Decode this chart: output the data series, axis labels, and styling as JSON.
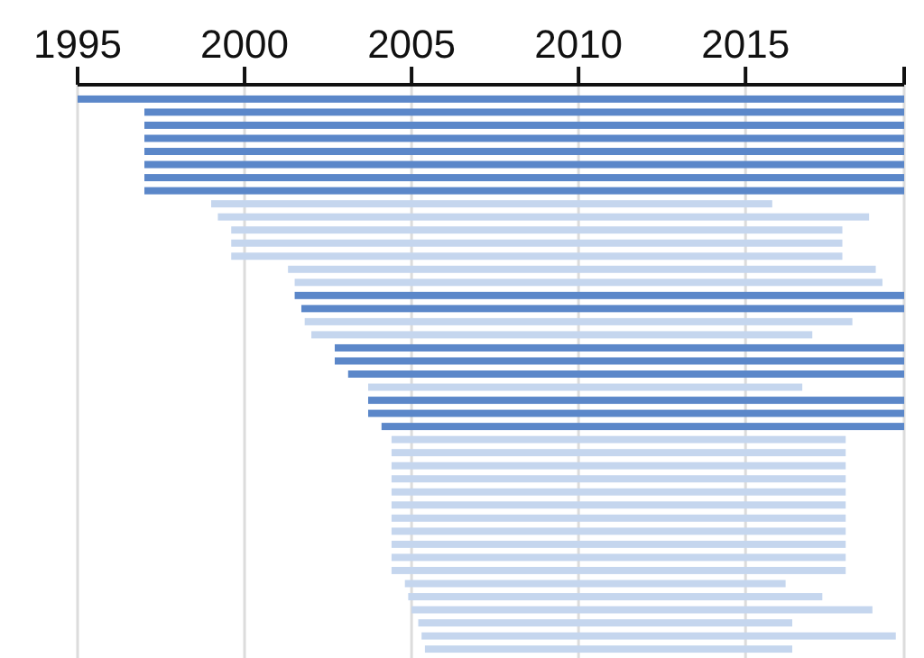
{
  "chart_data": {
    "type": "bar",
    "orientation": "horizontal",
    "categories": [
      null,
      null,
      null,
      null,
      null,
      null,
      null,
      null,
      null,
      null,
      null,
      null,
      null,
      null,
      null,
      null,
      null,
      null,
      null,
      null,
      null,
      null,
      null,
      null,
      null,
      null,
      null,
      null,
      null,
      null,
      null,
      null,
      null,
      null,
      null,
      null,
      null,
      null,
      null,
      null,
      null,
      null,
      null
    ],
    "base": [
      1995,
      1997,
      1997,
      1997,
      1997,
      1997,
      1997,
      1997,
      1999.0,
      1999.2,
      1999.6,
      1999.6,
      1999.6,
      2001.3,
      2001.5,
      2001.5,
      2001.7,
      2001.8,
      2002.0,
      2002.7,
      2002.7,
      2003.1,
      2003.7,
      2003.7,
      2003.7,
      2004.1,
      2004.4,
      2004.4,
      2004.4,
      2004.4,
      2004.4,
      2004.4,
      2004.4,
      2004.4,
      2004.4,
      2004.4,
      2004.4,
      2004.8,
      2004.9,
      2005.0,
      2005.2,
      2005.3,
      2005.4
    ],
    "values": [
      24.75,
      22.75,
      22.75,
      22.75,
      22.75,
      22.75,
      22.75,
      22.75,
      16.8,
      19.5,
      18.3,
      18.3,
      18.3,
      17.6,
      17.6,
      18.25,
      18.05,
      16.4,
      15.0,
      17.05,
      17.05,
      16.65,
      13.0,
      16.05,
      16.05,
      15.65,
      13.6,
      13.6,
      13.6,
      13.6,
      13.6,
      13.6,
      13.6,
      13.6,
      13.6,
      13.6,
      13.6,
      11.4,
      12.4,
      13.8,
      11.2,
      14.2,
      11.0
    ],
    "colors": [
      "#5b87c9",
      "#5b87c9",
      "#5b87c9",
      "#5b87c9",
      "#5b87c9",
      "#5b87c9",
      "#5b87c9",
      "#5b87c9",
      "#c5d6ee",
      "#c5d6ee",
      "#c5d6ee",
      "#c5d6ee",
      "#c5d6ee",
      "#c5d6ee",
      "#c5d6ee",
      "#5b87c9",
      "#5b87c9",
      "#c5d6ee",
      "#c5d6ee",
      "#5b87c9",
      "#5b87c9",
      "#5b87c9",
      "#c5d6ee",
      "#5b87c9",
      "#5b87c9",
      "#5b87c9",
      "#c5d6ee",
      "#c5d6ee",
      "#c5d6ee",
      "#c5d6ee",
      "#c5d6ee",
      "#c5d6ee",
      "#c5d6ee",
      "#c5d6ee",
      "#c5d6ee",
      "#c5d6ee",
      "#c5d6ee",
      "#c5d6ee",
      "#c5d6ee",
      "#c5d6ee",
      "#c5d6ee",
      "#c5d6ee",
      "#c5d6ee"
    ],
    "xlim": [
      1995,
      2019.75
    ],
    "xticks": [
      1995,
      2000,
      2005,
      2010,
      2015,
      {
        "value": 2019.75,
        "label": null
      }
    ],
    "grid": "x",
    "tick_labels": "x"
  }
}
